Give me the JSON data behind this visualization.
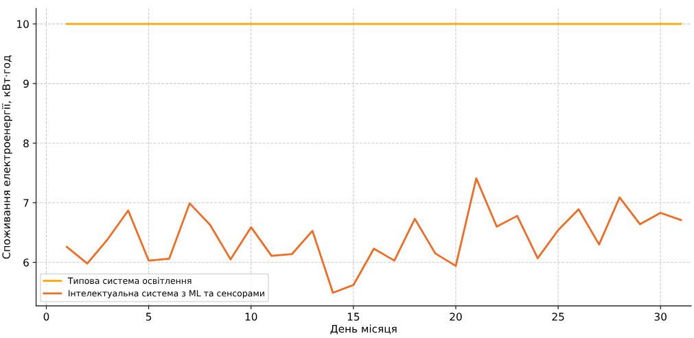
{
  "chart_data": {
    "type": "line",
    "xlabel": "День місяця",
    "ylabel": "Споживання електроенергії, кВт·год",
    "x": [
      1,
      2,
      3,
      4,
      5,
      6,
      7,
      8,
      9,
      10,
      11,
      12,
      13,
      14,
      15,
      16,
      17,
      18,
      19,
      20,
      21,
      22,
      23,
      24,
      25,
      26,
      27,
      28,
      29,
      30,
      31
    ],
    "series": [
      {
        "name": "Типова система освітлення",
        "color": "#ffa500",
        "values": [
          10,
          10,
          10,
          10,
          10,
          10,
          10,
          10,
          10,
          10,
          10,
          10,
          10,
          10,
          10,
          10,
          10,
          10,
          10,
          10,
          10,
          10,
          10,
          10,
          10,
          10,
          10,
          10,
          10,
          10,
          10
        ]
      },
      {
        "name": "Інтелектуальна система з ML та сенсорами",
        "color": "#f26b21",
        "values": [
          6.26,
          5.98,
          6.39,
          6.87,
          6.03,
          6.06,
          6.99,
          6.63,
          6.05,
          6.59,
          6.11,
          6.14,
          6.53,
          5.49,
          5.62,
          6.23,
          6.03,
          6.73,
          6.15,
          5.94,
          7.41,
          6.6,
          6.78,
          6.07,
          6.54,
          6.89,
          6.3,
          7.09,
          6.64,
          6.83,
          6.71
        ]
      }
    ],
    "xlim": [
      -0.5,
      31.5
    ],
    "ylim": [
      5.27,
      10.26
    ],
    "xticks": [
      0,
      5,
      10,
      15,
      20,
      25,
      30
    ],
    "yticks": [
      6,
      7,
      8,
      9,
      10
    ],
    "grid": true,
    "legend": "bottom left",
    "line_style": "solid",
    "marker": "none"
  }
}
